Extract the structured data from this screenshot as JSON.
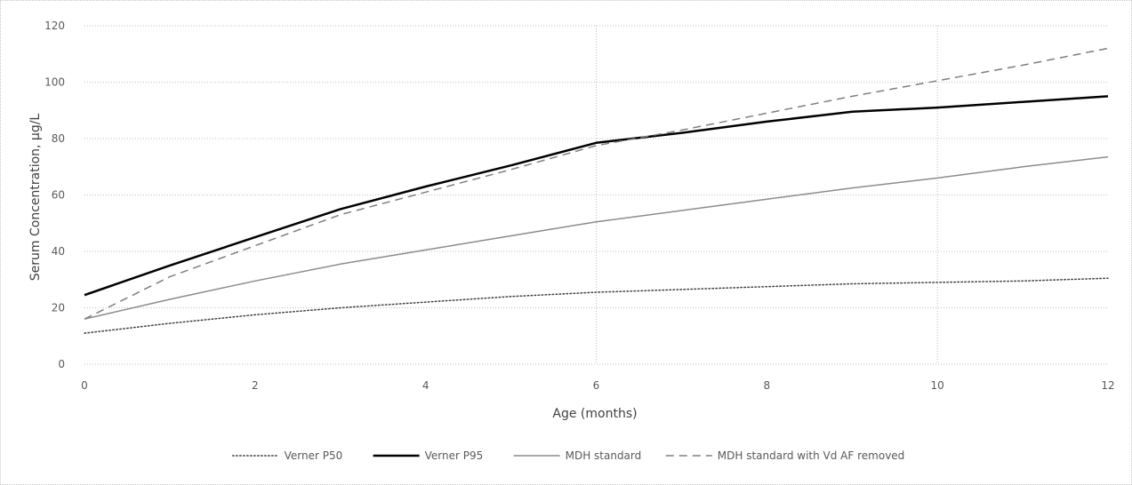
{
  "chart_data": {
    "type": "line",
    "title": "",
    "xlabel": "Age (months)",
    "ylabel": "Serum Concentration, µg/L",
    "xlim": [
      0,
      12
    ],
    "ylim": [
      0,
      120
    ],
    "x_ticks": [
      "0",
      "2",
      "4",
      "6",
      "8",
      "10",
      "12"
    ],
    "y_ticks": [
      "0",
      "20",
      "40",
      "60",
      "80",
      "100",
      "120"
    ],
    "grid": "horizontal dotted; vertical at 6 and 10",
    "legend_position": "bottom",
    "series": [
      {
        "name": "Verner P50",
        "style": "dotted",
        "color": "#404040",
        "x": [
          0,
          1,
          2,
          3,
          4,
          5,
          6,
          7,
          8,
          9,
          10,
          11,
          12
        ],
        "y": [
          11,
          14.5,
          17.5,
          20,
          22,
          24,
          25.5,
          26.5,
          27.5,
          28.5,
          29,
          29.5,
          30.5
        ]
      },
      {
        "name": "Verner P95",
        "style": "solid-thick",
        "color": "#000000",
        "x": [
          0,
          1,
          2,
          3,
          4,
          5,
          6,
          7,
          8,
          9,
          10,
          11,
          12
        ],
        "y": [
          24.5,
          35,
          45,
          55,
          63,
          70.5,
          78.5,
          82,
          86,
          89.5,
          91,
          93,
          95
        ]
      },
      {
        "name": "MDH standard",
        "style": "solid-thin",
        "color": "#8c8c8c",
        "x": [
          0,
          1,
          2,
          3,
          4,
          5,
          6,
          7,
          8,
          9,
          10,
          11,
          12
        ],
        "y": [
          16,
          23,
          29.5,
          35.5,
          40.5,
          45.5,
          50.5,
          54.5,
          58.5,
          62.5,
          66,
          70,
          73.5
        ]
      },
      {
        "name": "MDH standard with Vd AF removed",
        "style": "dashed",
        "color": "#7f7f7f",
        "x": [
          0,
          1,
          2,
          3,
          4,
          5,
          6,
          7,
          8,
          9,
          10,
          11,
          12
        ],
        "y": [
          16,
          31,
          42,
          53,
          61,
          69,
          77.5,
          83,
          89,
          95,
          100.5,
          106,
          112
        ]
      }
    ]
  }
}
